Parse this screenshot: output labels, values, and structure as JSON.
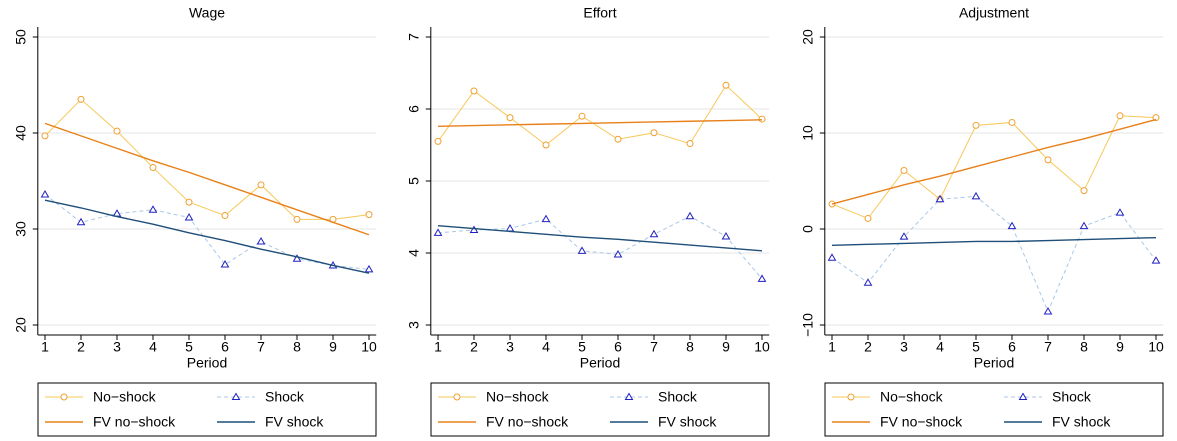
{
  "chart_data": [
    {
      "type": "line",
      "title": "Wage",
      "xlabel": "Period",
      "x": [
        1,
        2,
        3,
        4,
        5,
        6,
        7,
        8,
        9,
        10
      ],
      "xlim": [
        0.8,
        10.2
      ],
      "xticks": [
        1,
        2,
        3,
        4,
        5,
        6,
        7,
        8,
        9,
        10
      ],
      "ylim": [
        20,
        50
      ],
      "yticks": [
        20,
        30,
        40,
        50
      ],
      "grid": true,
      "series": [
        {
          "name": "No−shock",
          "color": "#f7c85a",
          "marker": "circle",
          "marker_color": "#f0a030",
          "values": [
            39.7,
            43.5,
            40.2,
            36.4,
            32.8,
            31.4,
            34.6,
            31.0,
            31.0,
            31.5
          ]
        },
        {
          "name": "Shock",
          "color": "#a8c8e8",
          "marker": "triangle",
          "marker_color": "#2020c0",
          "dash": true,
          "values": [
            33.6,
            30.7,
            31.6,
            32.0,
            31.2,
            26.3,
            28.7,
            26.9,
            26.2,
            25.8
          ]
        },
        {
          "name": "FV no−shock",
          "color": "#e8801a",
          "values": [
            41.0,
            39.7,
            38.4,
            37.1,
            35.9,
            34.6,
            33.3,
            32.0,
            30.7,
            29.4
          ]
        },
        {
          "name": "FV shock",
          "color": "#1f4e79",
          "values": [
            33.0,
            32.2,
            31.3,
            30.5,
            29.6,
            28.8,
            27.9,
            27.1,
            26.2,
            25.4
          ]
        }
      ]
    },
    {
      "type": "line",
      "title": "Effort",
      "xlabel": "Period",
      "x": [
        1,
        2,
        3,
        4,
        5,
        6,
        7,
        8,
        9,
        10
      ],
      "xlim": [
        0.8,
        10.2
      ],
      "xticks": [
        1,
        2,
        3,
        4,
        5,
        6,
        7,
        8,
        9,
        10
      ],
      "ylim": [
        3,
        7
      ],
      "yticks": [
        3,
        4,
        5,
        6,
        7
      ],
      "grid": true,
      "series": [
        {
          "name": "No−shock",
          "color": "#f7c85a",
          "marker": "circle",
          "marker_color": "#f0a030",
          "values": [
            5.55,
            6.25,
            5.88,
            5.5,
            5.9,
            5.58,
            5.67,
            5.52,
            6.33,
            5.86
          ]
        },
        {
          "name": "Shock",
          "color": "#a8c8e8",
          "marker": "triangle",
          "marker_color": "#2020c0",
          "dash": true,
          "values": [
            4.28,
            4.32,
            4.34,
            4.47,
            4.03,
            3.98,
            4.26,
            4.51,
            4.23,
            3.64
          ]
        },
        {
          "name": "FV no−shock",
          "color": "#e8801a",
          "values": [
            5.76,
            5.77,
            5.78,
            5.79,
            5.8,
            5.81,
            5.82,
            5.83,
            5.84,
            5.85
          ]
        },
        {
          "name": "FV shock",
          "color": "#1f4e79",
          "values": [
            4.38,
            4.34,
            4.3,
            4.26,
            4.22,
            4.19,
            4.15,
            4.11,
            4.07,
            4.03
          ]
        }
      ]
    },
    {
      "type": "line",
      "title": "Adjustment",
      "xlabel": "Period",
      "x": [
        1,
        2,
        3,
        4,
        5,
        6,
        7,
        8,
        9,
        10
      ],
      "xlim": [
        0.8,
        10.2
      ],
      "xticks": [
        1,
        2,
        3,
        4,
        5,
        6,
        7,
        8,
        9,
        10
      ],
      "ylim": [
        -10,
        20
      ],
      "yticks": [
        {
          "value": -10,
          "label": "−10"
        },
        0,
        10,
        20
      ],
      "grid": true,
      "series": [
        {
          "name": "No−shock",
          "color": "#f7c85a",
          "marker": "circle",
          "marker_color": "#f0a030",
          "values": [
            2.6,
            1.1,
            6.1,
            3.1,
            10.8,
            11.1,
            7.2,
            4.0,
            11.8,
            11.6
          ]
        },
        {
          "name": "Shock",
          "color": "#a8c8e8",
          "marker": "triangle",
          "marker_color": "#2020c0",
          "dash": true,
          "values": [
            -3.0,
            -5.6,
            -0.8,
            3.1,
            3.4,
            0.3,
            -8.6,
            0.3,
            1.7,
            -3.3
          ]
        },
        {
          "name": "FV no−shock",
          "color": "#e8801a",
          "values": [
            2.6,
            3.6,
            4.6,
            5.5,
            6.5,
            7.5,
            8.5,
            9.4,
            10.4,
            11.4
          ]
        },
        {
          "name": "FV shock",
          "color": "#1f4e79",
          "values": [
            -1.7,
            -1.6,
            -1.5,
            -1.4,
            -1.3,
            -1.3,
            -1.2,
            -1.1,
            -1.0,
            -0.9
          ]
        }
      ]
    }
  ]
}
